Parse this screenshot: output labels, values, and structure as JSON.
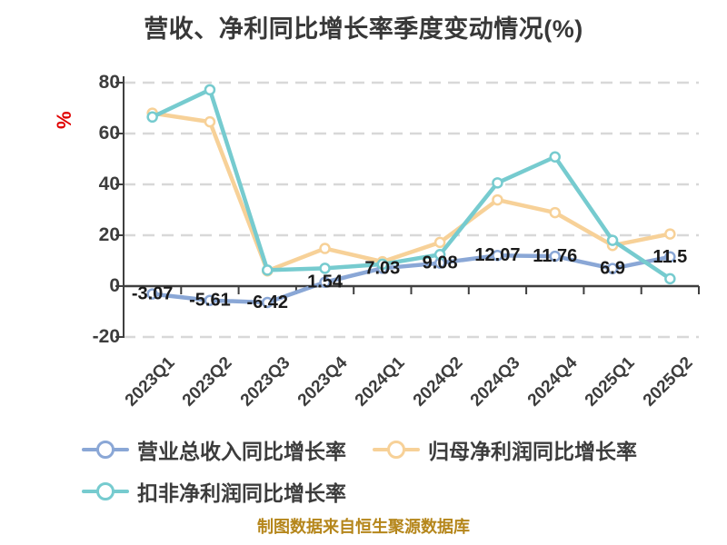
{
  "title": {
    "text": "营收、净利同比增长率季度变动情况(%)"
  },
  "y_axis": {
    "unit_label": "%",
    "tick_labels": [
      "80",
      "60",
      "40",
      "20",
      "0",
      "-20"
    ],
    "tick_values": [
      80,
      60,
      40,
      20,
      0,
      -20
    ]
  },
  "chart_data": {
    "type": "line",
    "title": "营收、净利同比增长率季度变动情况(%)",
    "categories": [
      "2023Q1",
      "2023Q2",
      "2023Q3",
      "2023Q4",
      "2024Q1",
      "2024Q2",
      "2024Q3",
      "2024Q4",
      "2025Q1",
      "2025Q2"
    ],
    "series": [
      {
        "name": "营业总收入同比增长率",
        "color": "#8aa7d6",
        "values": [
          -3.07,
          -5.61,
          -6.42,
          1.54,
          7.03,
          9.08,
          12.07,
          11.76,
          6.9,
          11.5
        ],
        "data_labels": [
          "-3.07",
          "-5.61",
          "-6.42",
          "1.54",
          "7.03",
          "9.08",
          "12.07",
          "11.76",
          "6.9",
          "11.5"
        ]
      },
      {
        "name": "归母净利润同比增长率",
        "color": "#f7d198",
        "values": [
          68.0,
          64.6,
          6.0,
          14.8,
          9.6,
          17.2,
          33.9,
          28.9,
          16.0,
          20.5
        ],
        "data_labels": []
      },
      {
        "name": "扣非净利润同比增长率",
        "color": "#76cbcf",
        "values": [
          66.5,
          77.2,
          6.3,
          7.0,
          8.6,
          12.4,
          40.6,
          50.8,
          18.0,
          2.9
        ],
        "data_labels": []
      }
    ],
    "ylim": [
      -20,
      80
    ],
    "ylabel": "%",
    "grid": "horizontal-dashed",
    "legend_position": "bottom"
  },
  "legend": {
    "items": [
      {
        "label": "营业总收入同比增长率",
        "color": "#8aa7d6"
      },
      {
        "label": "归母净利润同比增长率",
        "color": "#f7d198"
      },
      {
        "label": "扣非净利润同比增长率",
        "color": "#76cbcf"
      }
    ]
  },
  "footer": {
    "text": "制图数据来自恒生聚源数据库",
    "color": "#b5861b"
  },
  "colors": {
    "background": "#ffffff",
    "grid": "#d8d8d8",
    "axis": "#3f3f3f",
    "tick_text": "#3d3d3d",
    "data_label": "#1a1a1a",
    "unit_label": "#e00000",
    "marker_fill": "#ffffff"
  }
}
